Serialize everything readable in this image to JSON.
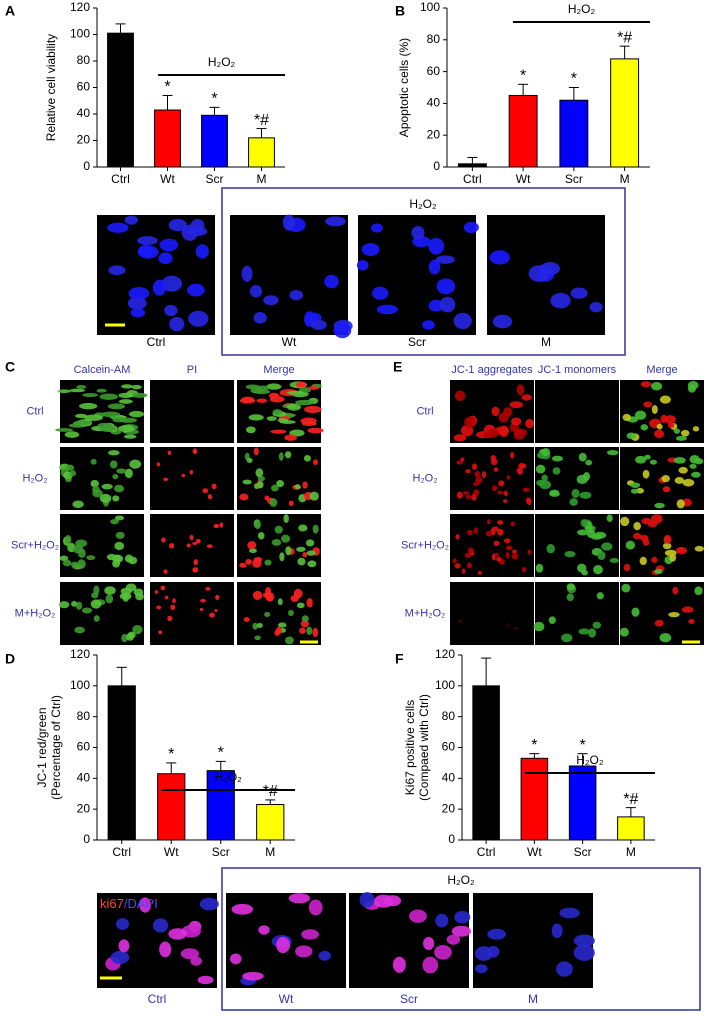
{
  "chart_data": [
    {
      "type": "bar",
      "letter": "A",
      "ylabel": "Relative cell viability",
      "categories": [
        "Ctrl",
        "Wt",
        "Scr",
        "M"
      ],
      "values": [
        101,
        43,
        39,
        22
      ],
      "errors": [
        7,
        11,
        6,
        7
      ],
      "colors": [
        "#000000",
        "#ff0000",
        "#0000ff",
        "#ffff00"
      ],
      "markers": [
        null,
        "*",
        "*",
        "*#"
      ],
      "bracket_label": "H₂O₂",
      "ylim": [
        0,
        120
      ],
      "yticks": [
        0,
        20,
        40,
        60,
        80,
        100,
        120
      ]
    },
    {
      "type": "bar",
      "letter": "B",
      "ylabel": "Apoptotic cells (%)",
      "categories": [
        "Ctrl",
        "Wt",
        "Scr",
        "M"
      ],
      "values": [
        2,
        45,
        42,
        68
      ],
      "errors": [
        4,
        7,
        8,
        8
      ],
      "colors": [
        "#000000",
        "#ff0000",
        "#0000ff",
        "#ffff00"
      ],
      "markers": [
        null,
        "*",
        "*",
        "*#"
      ],
      "bracket_label": "H₂O₂",
      "ylim": [
        0,
        100
      ],
      "yticks": [
        0,
        20,
        40,
        60,
        80,
        100
      ]
    },
    {
      "type": "bar",
      "letter": "D",
      "ylabel": [
        "JC-1 red/green",
        "(Percentage of Ctrl)"
      ],
      "categories": [
        "Ctrl",
        "Wt",
        "Scr",
        "M"
      ],
      "values": [
        100,
        43,
        45,
        23
      ],
      "errors": [
        12,
        7,
        6,
        3
      ],
      "colors": [
        "#000000",
        "#ff0000",
        "#0000ff",
        "#ffff00"
      ],
      "markers": [
        null,
        "*",
        "*",
        "*#"
      ],
      "bracket_label": "H₂O₂",
      "ylim": [
        0,
        120
      ],
      "yticks": [
        0,
        20,
        40,
        60,
        80,
        100,
        120
      ]
    },
    {
      "type": "bar",
      "letter": "F",
      "ylabel": [
        "Ki67 positive cells",
        "(Compaed with Ctrl)"
      ],
      "categories": [
        "Ctrl",
        "Wt",
        "Scr",
        "M"
      ],
      "values": [
        100,
        53,
        48,
        15
      ],
      "errors": [
        18,
        3,
        8,
        6
      ],
      "colors": [
        "#000000",
        "#ff0000",
        "#0000ff",
        "#ffff00"
      ],
      "markers": [
        null,
        "*",
        "*",
        "*#"
      ],
      "bracket_label": "H₂O₂",
      "ylim": [
        0,
        120
      ],
      "yticks": [
        0,
        20,
        40,
        60,
        80,
        100,
        120
      ]
    }
  ],
  "nuclei_panel": {
    "group_label": "H₂O₂",
    "labels": [
      "Ctrl",
      "Wt",
      "Scr",
      "M"
    ]
  },
  "live_dead": {
    "letter": "C",
    "columns": [
      "Calcein-AM",
      "PI",
      "Merge"
    ],
    "rows": [
      "Ctrl",
      "H₂O₂",
      "Scr+H₂O₂",
      "M+H₂O₂"
    ]
  },
  "jc1": {
    "letter": "E",
    "columns": [
      "JC-1 aggregates",
      "JC-1 monomers",
      "Merge"
    ],
    "rows": [
      "Ctrl",
      "H₂O₂",
      "Scr+H₂O₂",
      "M+H₂O₂"
    ]
  },
  "ki67_panel": {
    "stain": [
      "ki67",
      "/DAPI"
    ],
    "group_label": "H₂O₂",
    "labels": [
      "Ctrl",
      "Wt",
      "Scr",
      "M"
    ]
  }
}
